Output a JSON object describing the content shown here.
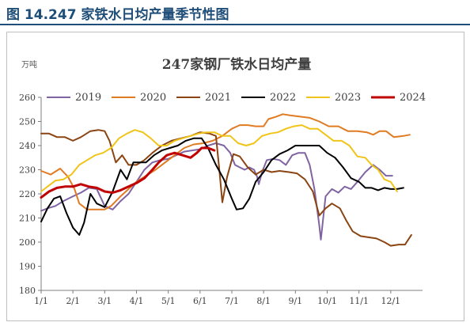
{
  "figure_title": "图 14.247 家铁水日均产量季节性图",
  "chart_data": {
    "type": "line",
    "title": "247家钢厂铁水日均产量",
    "ylabel": "万吨",
    "ylim": [
      180,
      260
    ],
    "yticks": [
      180,
      190,
      200,
      210,
      220,
      230,
      240,
      250,
      260
    ],
    "x_range": [
      0,
      12
    ],
    "xticks": [
      {
        "label": "1/1",
        "pos": 0
      },
      {
        "label": "2/1",
        "pos": 1
      },
      {
        "label": "3/1",
        "pos": 2
      },
      {
        "label": "4/1",
        "pos": 3
      },
      {
        "label": "5/1",
        "pos": 4
      },
      {
        "label": "6/1",
        "pos": 5
      },
      {
        "label": "7/1",
        "pos": 6
      },
      {
        "label": "8/1",
        "pos": 7
      },
      {
        "label": "9/1",
        "pos": 8
      },
      {
        "label": "10/1",
        "pos": 9
      },
      {
        "label": "11/1",
        "pos": 10
      },
      {
        "label": "12/1",
        "pos": 11
      }
    ],
    "legend_position": "top",
    "series": [
      {
        "name": "2019",
        "color": "#8064a2",
        "width": 2,
        "points": [
          [
            0.0,
            213
          ],
          [
            0.2,
            214
          ],
          [
            0.45,
            215
          ],
          [
            0.7,
            217
          ],
          [
            1.0,
            219
          ],
          [
            1.25,
            220.5
          ],
          [
            1.5,
            222.5
          ],
          [
            1.75,
            222
          ],
          [
            2.0,
            215
          ],
          [
            2.25,
            213.5
          ],
          [
            2.5,
            217
          ],
          [
            2.75,
            220
          ],
          [
            3.0,
            225
          ],
          [
            3.25,
            230
          ],
          [
            3.5,
            233
          ],
          [
            3.75,
            234
          ],
          [
            4.0,
            234.5
          ],
          [
            4.25,
            236
          ],
          [
            4.5,
            237.5
          ],
          [
            4.75,
            238
          ],
          [
            5.0,
            238.5
          ],
          [
            5.25,
            240
          ],
          [
            5.5,
            241
          ],
          [
            5.75,
            240
          ],
          [
            5.95,
            237
          ],
          [
            6.1,
            232
          ],
          [
            6.25,
            231
          ],
          [
            6.4,
            230
          ],
          [
            6.55,
            231
          ],
          [
            6.7,
            230
          ],
          [
            6.8,
            227
          ],
          [
            6.85,
            224
          ],
          [
            6.95,
            229
          ],
          [
            7.1,
            234
          ],
          [
            7.3,
            234.5
          ],
          [
            7.5,
            234
          ],
          [
            7.7,
            232
          ],
          [
            7.9,
            236
          ],
          [
            8.1,
            237
          ],
          [
            8.3,
            237
          ],
          [
            8.45,
            232
          ],
          [
            8.6,
            222
          ],
          [
            8.75,
            207
          ],
          [
            8.8,
            201
          ],
          [
            8.95,
            219
          ],
          [
            9.15,
            222
          ],
          [
            9.35,
            220.5
          ],
          [
            9.55,
            223
          ],
          [
            9.75,
            222
          ],
          [
            9.95,
            225
          ],
          [
            10.2,
            229
          ],
          [
            10.45,
            232
          ],
          [
            10.65,
            230
          ],
          [
            10.85,
            227.5
          ],
          [
            11.05,
            227.5
          ]
        ]
      },
      {
        "name": "2020",
        "color": "#e07b22",
        "width": 2,
        "points": [
          [
            0.0,
            229.5
          ],
          [
            0.3,
            228
          ],
          [
            0.6,
            230.5
          ],
          [
            0.85,
            227
          ],
          [
            1.05,
            222
          ],
          [
            1.2,
            216
          ],
          [
            1.45,
            213.5
          ],
          [
            1.7,
            213.5
          ],
          [
            2.0,
            213.5
          ],
          [
            2.2,
            215
          ],
          [
            2.5,
            219
          ],
          [
            2.75,
            222
          ],
          [
            3.0,
            225
          ],
          [
            3.3,
            227.5
          ],
          [
            3.6,
            230
          ],
          [
            3.9,
            233
          ],
          [
            4.2,
            236
          ],
          [
            4.5,
            239
          ],
          [
            4.8,
            240.5
          ],
          [
            5.1,
            241
          ],
          [
            5.4,
            242
          ],
          [
            5.7,
            244
          ],
          [
            6.0,
            247
          ],
          [
            6.25,
            248.5
          ],
          [
            6.5,
            248.5
          ],
          [
            6.75,
            248
          ],
          [
            7.0,
            248
          ],
          [
            7.15,
            251
          ],
          [
            7.4,
            252
          ],
          [
            7.6,
            253
          ],
          [
            7.85,
            252.5
          ],
          [
            8.15,
            252
          ],
          [
            8.45,
            251.5
          ],
          [
            8.75,
            250
          ],
          [
            9.05,
            248
          ],
          [
            9.35,
            248
          ],
          [
            9.65,
            246
          ],
          [
            9.95,
            246
          ],
          [
            10.25,
            245.5
          ],
          [
            10.45,
            244.5
          ],
          [
            10.65,
            246
          ],
          [
            10.85,
            246
          ],
          [
            11.1,
            243.5
          ],
          [
            11.4,
            244
          ],
          [
            11.6,
            244.5
          ]
        ]
      },
      {
        "name": "2021",
        "color": "#8b4513",
        "width": 2,
        "points": [
          [
            0.0,
            245
          ],
          [
            0.25,
            245
          ],
          [
            0.5,
            243.5
          ],
          [
            0.75,
            243.5
          ],
          [
            1.0,
            242
          ],
          [
            1.25,
            243.5
          ],
          [
            1.55,
            246
          ],
          [
            1.8,
            246.5
          ],
          [
            2.0,
            246
          ],
          [
            2.15,
            242
          ],
          [
            2.35,
            233
          ],
          [
            2.55,
            236
          ],
          [
            2.75,
            232
          ],
          [
            3.0,
            232
          ],
          [
            3.25,
            234
          ],
          [
            3.5,
            237
          ],
          [
            3.8,
            240
          ],
          [
            4.1,
            242
          ],
          [
            4.4,
            243
          ],
          [
            4.7,
            244
          ],
          [
            5.0,
            245.5
          ],
          [
            5.3,
            245
          ],
          [
            5.5,
            244
          ],
          [
            5.6,
            231
          ],
          [
            5.7,
            216.5
          ],
          [
            5.85,
            227
          ],
          [
            6.05,
            236.5
          ],
          [
            6.25,
            235.5
          ],
          [
            6.5,
            231
          ],
          [
            6.75,
            228
          ],
          [
            7.0,
            230
          ],
          [
            7.25,
            229
          ],
          [
            7.5,
            229.5
          ],
          [
            7.8,
            229
          ],
          [
            8.05,
            228.5
          ],
          [
            8.3,
            226
          ],
          [
            8.55,
            221
          ],
          [
            8.75,
            211
          ],
          [
            8.95,
            214
          ],
          [
            9.15,
            216
          ],
          [
            9.4,
            214
          ],
          [
            9.6,
            209
          ],
          [
            9.8,
            204.5
          ],
          [
            10.05,
            202.5
          ],
          [
            10.3,
            202
          ],
          [
            10.55,
            201.5
          ],
          [
            10.8,
            200
          ],
          [
            11.0,
            198.5
          ],
          [
            11.25,
            199
          ],
          [
            11.45,
            199
          ],
          [
            11.65,
            203
          ]
        ]
      },
      {
        "name": "2022",
        "color": "#000000",
        "width": 2,
        "points": [
          [
            0.0,
            208.5
          ],
          [
            0.2,
            214
          ],
          [
            0.4,
            218
          ],
          [
            0.6,
            219
          ],
          [
            0.8,
            212
          ],
          [
            1.0,
            206
          ],
          [
            1.2,
            203
          ],
          [
            1.35,
            208
          ],
          [
            1.55,
            220
          ],
          [
            1.75,
            216
          ],
          [
            2.0,
            214.5
          ],
          [
            2.25,
            221
          ],
          [
            2.5,
            230
          ],
          [
            2.7,
            226
          ],
          [
            2.9,
            233
          ],
          [
            3.1,
            233
          ],
          [
            3.3,
            233
          ],
          [
            3.55,
            236
          ],
          [
            3.8,
            238
          ],
          [
            4.05,
            239
          ],
          [
            4.3,
            240
          ],
          [
            4.55,
            242
          ],
          [
            4.8,
            243
          ],
          [
            5.05,
            243
          ],
          [
            5.25,
            239
          ],
          [
            5.5,
            232
          ],
          [
            5.75,
            226
          ],
          [
            6.0,
            218
          ],
          [
            6.15,
            213.5
          ],
          [
            6.35,
            214
          ],
          [
            6.55,
            218
          ],
          [
            6.75,
            225
          ],
          [
            7.0,
            229
          ],
          [
            7.25,
            234
          ],
          [
            7.5,
            236.5
          ],
          [
            7.75,
            238
          ],
          [
            8.0,
            240
          ],
          [
            8.25,
            240
          ],
          [
            8.5,
            240
          ],
          [
            8.75,
            240
          ],
          [
            9.0,
            237
          ],
          [
            9.25,
            235
          ],
          [
            9.5,
            231
          ],
          [
            9.75,
            226.5
          ],
          [
            10.0,
            225
          ],
          [
            10.2,
            222.5
          ],
          [
            10.4,
            222.5
          ],
          [
            10.6,
            221.5
          ],
          [
            10.8,
            222.5
          ],
          [
            11.0,
            222
          ],
          [
            11.2,
            222
          ],
          [
            11.4,
            222.5
          ]
        ]
      },
      {
        "name": "2023",
        "color": "#f0c419",
        "width": 2,
        "points": [
          [
            0.0,
            221
          ],
          [
            0.2,
            223
          ],
          [
            0.45,
            225.5
          ],
          [
            0.7,
            226
          ],
          [
            0.95,
            228
          ],
          [
            1.2,
            232
          ],
          [
            1.45,
            234
          ],
          [
            1.7,
            236
          ],
          [
            1.95,
            237
          ],
          [
            2.2,
            239
          ],
          [
            2.45,
            243
          ],
          [
            2.7,
            245
          ],
          [
            2.95,
            246.5
          ],
          [
            3.2,
            245.5
          ],
          [
            3.45,
            243
          ],
          [
            3.7,
            240
          ],
          [
            3.95,
            240
          ],
          [
            4.2,
            242
          ],
          [
            4.45,
            243
          ],
          [
            4.7,
            244
          ],
          [
            4.95,
            245
          ],
          [
            5.2,
            245.5
          ],
          [
            5.45,
            245.5
          ],
          [
            5.7,
            244
          ],
          [
            5.95,
            244
          ],
          [
            6.2,
            241
          ],
          [
            6.45,
            240
          ],
          [
            6.7,
            241
          ],
          [
            6.95,
            244
          ],
          [
            7.2,
            245
          ],
          [
            7.45,
            245.5
          ],
          [
            7.7,
            247
          ],
          [
            7.95,
            248
          ],
          [
            8.2,
            248.5
          ],
          [
            8.45,
            247
          ],
          [
            8.7,
            247
          ],
          [
            8.95,
            244.5
          ],
          [
            9.2,
            242
          ],
          [
            9.45,
            242
          ],
          [
            9.7,
            240
          ],
          [
            9.95,
            235.5
          ],
          [
            10.2,
            235
          ],
          [
            10.4,
            232
          ],
          [
            10.6,
            230
          ],
          [
            10.8,
            226
          ],
          [
            11.0,
            225
          ],
          [
            11.2,
            221
          ]
        ]
      },
      {
        "name": "2024",
        "color": "#c00000",
        "width": 3,
        "points": [
          [
            0.0,
            218.5
          ],
          [
            0.25,
            221
          ],
          [
            0.5,
            222.5
          ],
          [
            0.75,
            223
          ],
          [
            1.0,
            223
          ],
          [
            1.25,
            224
          ],
          [
            1.5,
            223
          ],
          [
            1.75,
            222.5
          ],
          [
            2.0,
            221
          ],
          [
            2.25,
            220.5
          ],
          [
            2.5,
            221.5
          ],
          [
            2.75,
            223
          ],
          [
            3.0,
            224.5
          ],
          [
            3.25,
            226.5
          ],
          [
            3.5,
            230
          ],
          [
            3.7,
            233
          ],
          [
            3.95,
            236
          ],
          [
            4.2,
            237
          ],
          [
            4.45,
            236
          ],
          [
            4.7,
            235
          ],
          [
            4.9,
            237
          ],
          [
            5.05,
            239
          ],
          [
            5.25,
            239
          ],
          [
            5.45,
            238
          ]
        ]
      }
    ]
  }
}
